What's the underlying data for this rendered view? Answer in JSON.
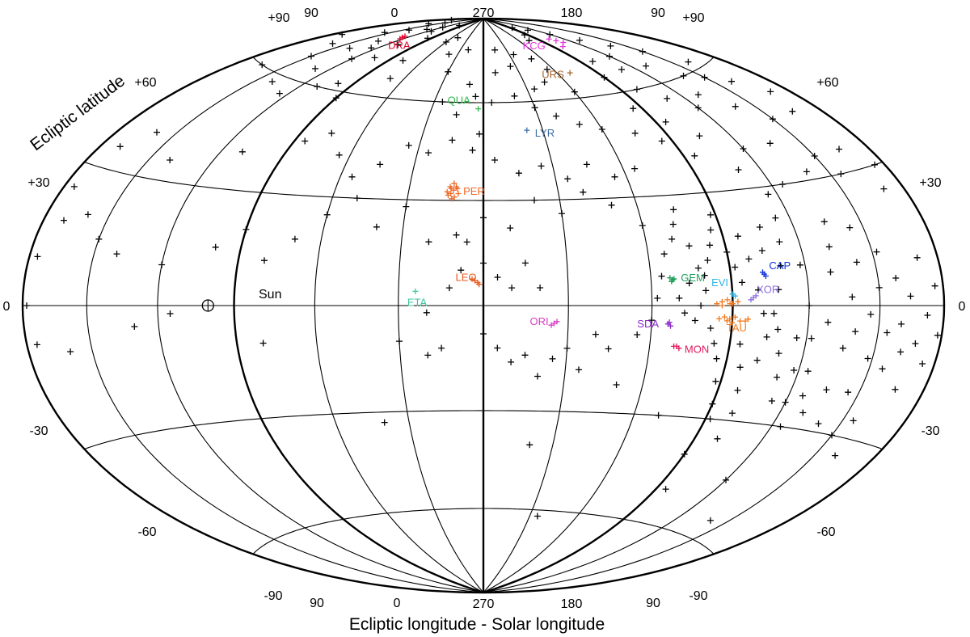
{
  "chart_data": {
    "type": "scatter",
    "projection": "Hammer-Aitoff (sun-centred ecliptic)",
    "xlabel": "Ecliptic longitude - Solar longitude",
    "ylabel": "Ecliptic latitude",
    "xlim": [
      -180,
      180
    ],
    "ylim": [
      -90,
      90
    ],
    "grid": true,
    "top_ticks": [
      "90",
      "0",
      "270",
      "180",
      "90"
    ],
    "bottom_ticks": [
      "90",
      "0",
      "270",
      "180",
      "90"
    ],
    "lat_ticks": {
      "north_pole": "+90",
      "p60": "+60",
      "p30": "+30",
      "zero": "0",
      "m30": "-30",
      "m60": "-60",
      "south_pole": "-90"
    },
    "sun_label": "Sun",
    "sun": {
      "x": -100,
      "y": 0
    },
    "showers": [
      {
        "name": "DRA",
        "color": "#e8002a",
        "x": -124,
        "y": 78,
        "points": [
          [
            -125,
            78
          ],
          [
            -123,
            77.5
          ],
          [
            -126,
            78.5
          ]
        ]
      },
      {
        "name": "QUA",
        "color": "#2fb84a",
        "x": -3,
        "y": 58,
        "points": [
          [
            -3,
            58
          ]
        ]
      },
      {
        "name": "LYR",
        "color": "#3a6ea5",
        "x": 22,
        "y": 51,
        "points": [
          [
            22,
            51
          ]
        ]
      },
      {
        "name": "URS",
        "color": "#a5652e",
        "x": 68,
        "y": 68,
        "points": [
          [
            70,
            68
          ]
        ]
      },
      {
        "name": "KCG",
        "color": "#e532d9",
        "x": 105,
        "y": 78,
        "points": [
          [
            107,
            78
          ],
          [
            104,
            79
          ],
          [
            110,
            77
          ],
          [
            100,
            76
          ]
        ]
      },
      {
        "name": "PER",
        "color": "#f06a28",
        "x": -12,
        "y": 33,
        "points": [
          [
            -12,
            33
          ],
          [
            -13,
            32
          ],
          [
            -11,
            34
          ],
          [
            -14,
            31.5
          ],
          [
            -12.5,
            30.5
          ],
          [
            -10.5,
            33.5
          ],
          [
            -13.5,
            34
          ],
          [
            -11.5,
            31
          ],
          [
            -14.5,
            32.5
          ],
          [
            -12,
            35
          ],
          [
            -10,
            32
          ],
          [
            -13,
            33.5
          ]
        ]
      },
      {
        "name": "LEO",
        "color": "#e65a1f",
        "x": -3,
        "y": 7,
        "points": [
          [
            -3,
            7
          ],
          [
            -2,
            6.5
          ],
          [
            -4,
            7.5
          ],
          [
            -1.5,
            6
          ]
        ]
      },
      {
        "name": "ETA",
        "color": "#3cc5a1",
        "x": -24,
        "y": 4,
        "points": [
          [
            -24,
            4
          ]
        ]
      },
      {
        "name": "ORI",
        "color": "#d63ec2",
        "x": 25,
        "y": -5,
        "points": [
          [
            25,
            -5
          ],
          [
            24,
            -5.5
          ],
          [
            26,
            -4.5
          ]
        ]
      },
      {
        "name": "GEM",
        "color": "#1e9e5a",
        "x": 68,
        "y": 7,
        "points": [
          [
            68,
            7
          ],
          [
            67.5,
            6.5
          ],
          [
            68.5,
            7.2
          ],
          [
            67,
            7.5
          ]
        ]
      },
      {
        "name": "CAP",
        "color": "#1133dd",
        "x": 103,
        "y": 8,
        "points": [
          [
            103,
            8
          ],
          [
            103.5,
            7.5
          ],
          [
            102.5,
            8.5
          ]
        ]
      },
      {
        "name": "EVI",
        "color": "#29b6e6",
        "x": 90,
        "y": 3,
        "points": [
          [
            90,
            3
          ],
          [
            91,
            2.5
          ]
        ]
      },
      {
        "name": "XOR",
        "color": "#8e6fe0",
        "x": 98,
        "y": 2,
        "points": [
          [
            98,
            2
          ],
          [
            97,
            1.5
          ],
          [
            99,
            2.5
          ]
        ]
      },
      {
        "name": "TAU",
        "color": "#f07a1e",
        "x": 89,
        "y": -3,
        "points": [
          [
            84,
            0.5
          ],
          [
            86,
            1
          ],
          [
            88,
            1.5
          ],
          [
            90,
            0.5
          ],
          [
            92,
            1
          ],
          [
            87,
            -3
          ],
          [
            89,
            -3.5
          ],
          [
            91,
            -3
          ],
          [
            93,
            -4
          ],
          [
            88,
            -4
          ],
          [
            95,
            -4
          ],
          [
            85,
            -3.5
          ],
          [
            90,
            -4.5
          ],
          [
            96,
            -3.5
          ],
          [
            86,
            0
          ],
          [
            89,
            0.5
          ]
        ]
      },
      {
        "name": "SDA",
        "color": "#8b28c8",
        "x": 66,
        "y": -5,
        "points": [
          [
            66,
            -5
          ],
          [
            67,
            -5.5
          ],
          [
            66.5,
            -4.5
          ]
        ]
      },
      {
        "name": "MON",
        "color": "#e0195a",
        "x": 70,
        "y": -11,
        "points": [
          [
            70,
            -11
          ],
          [
            71,
            -11.5
          ],
          [
            69,
            -11
          ]
        ]
      }
    ],
    "sporadic": [
      [
        -150,
        85
      ],
      [
        -130,
        82
      ],
      [
        -145,
        80
      ],
      [
        -160,
        83
      ],
      [
        -120,
        84
      ],
      [
        -115,
        82
      ],
      [
        -170,
        86
      ],
      [
        -155,
        77
      ],
      [
        -135,
        75
      ],
      [
        -125,
        73
      ],
      [
        -110,
        76
      ],
      [
        -140,
        71
      ],
      [
        -160,
        70
      ],
      [
        -120,
        69
      ],
      [
        -105,
        71
      ],
      [
        -150,
        66
      ],
      [
        -130,
        64
      ],
      [
        -175,
        72
      ],
      [
        -100,
        86
      ],
      [
        -95,
        80
      ],
      [
        -165,
        60
      ],
      [
        -140,
        58
      ],
      [
        -125,
        56
      ],
      [
        -110,
        60
      ],
      [
        -100,
        62
      ],
      [
        -90,
        58
      ],
      [
        -78,
        72
      ],
      [
        -70,
        66
      ],
      [
        -60,
        80
      ],
      [
        -50,
        82
      ],
      [
        -40,
        76
      ],
      [
        -30,
        70
      ],
      [
        -20,
        78
      ],
      [
        -10,
        66
      ],
      [
        -5,
        62
      ],
      [
        -15,
        56
      ],
      [
        -25,
        60
      ],
      [
        5,
        60
      ],
      [
        10,
        70
      ],
      [
        15,
        78
      ],
      [
        25,
        72
      ],
      [
        35,
        76
      ],
      [
        20,
        62
      ],
      [
        35,
        64
      ],
      [
        45,
        66
      ],
      [
        50,
        74
      ],
      [
        55,
        70
      ],
      [
        60,
        62
      ],
      [
        75,
        80
      ],
      [
        85,
        82
      ],
      [
        95,
        85
      ],
      [
        110,
        83
      ],
      [
        120,
        80
      ],
      [
        130,
        76
      ],
      [
        140,
        72
      ],
      [
        150,
        68
      ],
      [
        160,
        62
      ],
      [
        120,
        70
      ],
      [
        130,
        65
      ],
      [
        140,
        60
      ],
      [
        110,
        66
      ],
      [
        100,
        70
      ],
      [
        150,
        58
      ],
      [
        160,
        55
      ],
      [
        170,
        50
      ],
      [
        165,
        45
      ],
      [
        150,
        45
      ],
      [
        140,
        50
      ],
      [
        130,
        55
      ],
      [
        120,
        52
      ],
      [
        110,
        56
      ],
      [
        100,
        60
      ],
      [
        90,
        65
      ],
      [
        85,
        55
      ],
      [
        95,
        50
      ],
      [
        105,
        45
      ],
      [
        120,
        40
      ],
      [
        135,
        40
      ],
      [
        150,
        35
      ],
      [
        165,
        35
      ],
      [
        175,
        30
      ],
      [
        170,
        25
      ],
      [
        155,
        30
      ],
      [
        140,
        32
      ],
      [
        125,
        30
      ],
      [
        110,
        35
      ],
      [
        95,
        40
      ],
      [
        85,
        45
      ],
      [
        75,
        48
      ],
      [
        60,
        50
      ],
      [
        50,
        52
      ],
      [
        40,
        55
      ],
      [
        30,
        58
      ],
      [
        -2,
        50
      ],
      [
        -5,
        45
      ],
      [
        -15,
        48
      ],
      [
        -25,
        44
      ],
      [
        -35,
        46
      ],
      [
        -45,
        40
      ],
      [
        -55,
        36
      ],
      [
        -65,
        42
      ],
      [
        -75,
        48
      ],
      [
        -85,
        45
      ],
      [
        -110,
        40
      ],
      [
        -140,
        35
      ],
      [
        -160,
        40
      ],
      [
        -170,
        35
      ],
      [
        -175,
        25
      ],
      [
        -170,
        18
      ],
      [
        -160,
        20
      ],
      [
        -150,
        15
      ],
      [
        -140,
        12
      ],
      [
        -120,
        10
      ],
      [
        -100,
        15
      ],
      [
        -90,
        20
      ],
      [
        -80,
        12
      ],
      [
        -70,
        18
      ],
      [
        -60,
        25
      ],
      [
        -50,
        30
      ],
      [
        -40,
        22
      ],
      [
        -30,
        28
      ],
      [
        -20,
        18
      ],
      [
        -10,
        20
      ],
      [
        0,
        25
      ],
      [
        10,
        22
      ],
      [
        20,
        30
      ],
      [
        30,
        26
      ],
      [
        40,
        32
      ],
      [
        50,
        28
      ],
      [
        60,
        22
      ],
      [
        5,
        42
      ],
      [
        15,
        38
      ],
      [
        25,
        40
      ],
      [
        35,
        36
      ],
      [
        45,
        40
      ],
      [
        55,
        36
      ],
      [
        65,
        38
      ],
      [
        -176,
        10
      ],
      [
        -178,
        0
      ],
      [
        -175,
        -8
      ],
      [
        -160,
        -10
      ],
      [
        -130,
        -5
      ],
      [
        -115,
        -2
      ],
      [
        -80,
        -10
      ],
      [
        -20,
        -2
      ],
      [
        -12,
        5
      ],
      [
        -8,
        10
      ],
      [
        -6,
        18
      ],
      [
        0,
        12
      ],
      [
        5,
        8
      ],
      [
        10,
        5
      ],
      [
        15,
        12
      ],
      [
        20,
        5
      ],
      [
        -30,
        -10
      ],
      [
        -20,
        -14
      ],
      [
        -15,
        -12
      ],
      [
        0,
        -8
      ],
      [
        5,
        -12
      ],
      [
        10,
        -16
      ],
      [
        15,
        -14
      ],
      [
        20,
        -20
      ],
      [
        25,
        -15
      ],
      [
        30,
        -12
      ],
      [
        35,
        -18
      ],
      [
        40,
        -8
      ],
      [
        45,
        -12
      ],
      [
        50,
        -22
      ],
      [
        55,
        -8
      ],
      [
        60,
        -4
      ],
      [
        62,
        2
      ],
      [
        64,
        8
      ],
      [
        66,
        14
      ],
      [
        70,
        18
      ],
      [
        72,
        22
      ],
      [
        74,
        26
      ],
      [
        76,
        16
      ],
      [
        78,
        10
      ],
      [
        80,
        4
      ],
      [
        82,
        -6
      ],
      [
        84,
        -10
      ],
      [
        86,
        -14
      ],
      [
        88,
        -20
      ],
      [
        90,
        -26
      ],
      [
        92,
        -30
      ],
      [
        94,
        -10
      ],
      [
        96,
        -16
      ],
      [
        98,
        -22
      ],
      [
        100,
        -28
      ],
      [
        102,
        -14
      ],
      [
        104,
        -8
      ],
      [
        106,
        -2
      ],
      [
        108,
        4
      ],
      [
        110,
        10
      ],
      [
        112,
        16
      ],
      [
        114,
        22
      ],
      [
        116,
        28
      ],
      [
        118,
        10
      ],
      [
        120,
        0
      ],
      [
        122,
        -8
      ],
      [
        124,
        -16
      ],
      [
        126,
        -22
      ],
      [
        128,
        -4
      ],
      [
        130,
        8
      ],
      [
        132,
        14
      ],
      [
        134,
        20
      ],
      [
        136,
        -10
      ],
      [
        138,
        2
      ],
      [
        140,
        -6
      ],
      [
        142,
        10
      ],
      [
        144,
        18
      ],
      [
        146,
        -2
      ],
      [
        148,
        -12
      ],
      [
        150,
        4
      ],
      [
        152,
        12
      ],
      [
        154,
        -6
      ],
      [
        156,
        -14
      ],
      [
        158,
        6
      ],
      [
        160,
        -4
      ],
      [
        162,
        -10
      ],
      [
        164,
        2
      ],
      [
        166,
        -18
      ],
      [
        168,
        -8
      ],
      [
        170,
        10
      ],
      [
        172,
        -2
      ],
      [
        174,
        -12
      ],
      [
        176,
        4
      ],
      [
        178,
        -6
      ],
      [
        70,
        2
      ],
      [
        72,
        -2
      ],
      [
        74,
        6
      ],
      [
        76,
        -4
      ],
      [
        78,
        0
      ],
      [
        80,
        8
      ],
      [
        82,
        12
      ],
      [
        84,
        16
      ],
      [
        86,
        20
      ],
      [
        88,
        24
      ],
      [
        90,
        14
      ],
      [
        92,
        10
      ],
      [
        94,
        6
      ],
      [
        96,
        18
      ],
      [
        98,
        12
      ],
      [
        100,
        4
      ],
      [
        102,
        -2
      ],
      [
        104,
        14
      ],
      [
        106,
        20
      ],
      [
        108,
        -6
      ],
      [
        110,
        -12
      ],
      [
        112,
        -18
      ],
      [
        114,
        -24
      ],
      [
        116,
        -8
      ],
      [
        118,
        -16
      ],
      [
        120,
        -24
      ],
      [
        124,
        -30
      ],
      [
        130,
        -26
      ],
      [
        135,
        -20
      ],
      [
        140,
        -28
      ],
      [
        145,
        -20
      ],
      [
        150,
        -30
      ],
      [
        155,
        -26
      ],
      [
        160,
        -34
      ],
      [
        100,
        -35
      ],
      [
        90,
        -40
      ],
      [
        95,
        -50
      ],
      [
        120,
        -45
      ],
      [
        140,
        -55
      ],
      [
        35,
        -62
      ],
      [
        -40,
        -33
      ],
      [
        20,
        -40
      ],
      [
        70,
        -30
      ]
    ]
  }
}
